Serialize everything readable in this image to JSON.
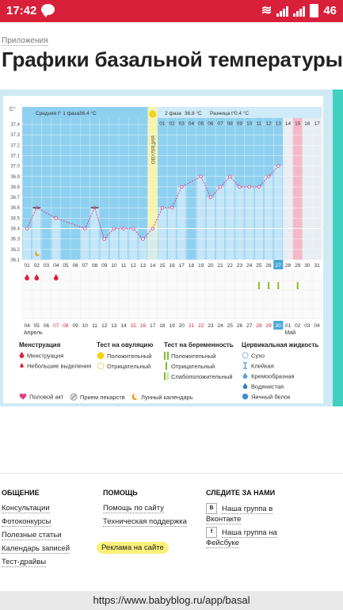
{
  "status": {
    "time": "17:42",
    "battery": "46"
  },
  "breadcrumb": "Приложения",
  "page_title": "Графики базальной температуры",
  "chart": {
    "unit": "C°",
    "phase1_label": "Средняя t° 1 фаза",
    "phase1_value": "36.4 °C",
    "phase2_label": "2 фаза",
    "phase2_value": "36.8 °C",
    "diff_label": "Разница t°",
    "diff_value": "0.4 °C",
    "ovulation_label": "ОВУЛЯЦИЯ",
    "month_april": "Апрель",
    "month_may": "Май"
  },
  "chart_data": {
    "type": "line",
    "y_ticks": [
      "37.4",
      "37.3",
      "37.2",
      "37.1",
      "37.0",
      "36.9",
      "36.8",
      "36.7",
      "36.6",
      "36.5",
      "36.4",
      "36.3",
      "36.2",
      "36.1"
    ],
    "ylim": [
      36.1,
      37.4
    ],
    "cycle_days": [
      "01",
      "02",
      "03",
      "04",
      "05",
      "06",
      "07",
      "08",
      "09",
      "10",
      "11",
      "12",
      "13",
      "14",
      "15",
      "16",
      "17",
      "18",
      "19",
      "20",
      "21",
      "22",
      "23",
      "24",
      "25",
      "26",
      "27",
      "28",
      "29",
      "30",
      "31"
    ],
    "top_days": [
      "01",
      "02",
      "03",
      "04",
      "05",
      "06",
      "07",
      "08",
      "09",
      "10",
      "11",
      "12",
      "13",
      "14",
      "15",
      "16",
      "17"
    ],
    "dates": [
      "04",
      "05",
      "06",
      "07",
      "08",
      "09",
      "10",
      "11",
      "12",
      "13",
      "14",
      "15",
      "16",
      "17",
      "18",
      "19",
      "20",
      "21",
      "22",
      "23",
      "24",
      "25",
      "26",
      "27",
      "28",
      "29",
      "30",
      "01",
      "02",
      "03",
      "04"
    ],
    "red_date_indices": [
      3,
      4,
      11,
      12,
      17,
      18,
      24,
      25
    ],
    "highlight_date_index": 26,
    "temperatures": [
      36.4,
      36.6,
      null,
      36.5,
      null,
      null,
      36.4,
      36.6,
      36.3,
      36.4,
      36.4,
      36.4,
      36.3,
      36.4,
      36.6,
      36.6,
      36.8,
      null,
      36.9,
      36.7,
      36.8,
      36.9,
      36.8,
      36.8,
      36.8,
      36.9,
      37.0
    ],
    "ovulation_day": 14,
    "phase1_average": 36.4,
    "menstruation_days": [
      1,
      2,
      4
    ],
    "positive_pregnancy_test_days": [
      25,
      26,
      27,
      29
    ],
    "highlight_day": 27,
    "pink_day": 29,
    "grey_days": [
      28,
      30,
      31
    ]
  },
  "legend": {
    "menstruation": {
      "title": "Менструация",
      "items": [
        "Менструация",
        "Небольшие выделения"
      ]
    },
    "ovulation_test": {
      "title": "Тест на овуляцию",
      "items": [
        "Положительный",
        "Отрицательный"
      ]
    },
    "pregnancy_test": {
      "title": "Тест на беременность",
      "items": [
        "Положительный",
        "Отрицательный",
        "Слабоположительный"
      ]
    },
    "cervical": {
      "title": "Цервикальная жидкость",
      "items": [
        "Сухо",
        "Клейкая",
        "Кремообразная",
        "Водянистая",
        "Яичный белок"
      ]
    },
    "bottom": [
      "Половой акт",
      "Прием лекарств",
      "Лунный календарь"
    ]
  },
  "footer": {
    "col1": {
      "title": "ОБЩЕНИЕ",
      "links": [
        "Консультации",
        "Фотоконкурсы",
        "Полезные статьи",
        "Календарь записей",
        "Тест-драйвы"
      ]
    },
    "col2": {
      "title": "ПОМОЩЬ",
      "links": [
        "Помощь по сайту",
        "Техническая поддержка",
        "Реклама на сайте"
      ]
    },
    "col3": {
      "title": "СЛЕДИТЕ ЗА НАМИ",
      "vk_badge": "В",
      "vk_line1": "Наша группа в",
      "vk_line2": "Вконтакте",
      "fb_badge": "f",
      "fb_line1": "Наша группа на",
      "fb_line2": "Фейсбуке"
    }
  },
  "url": "https://www.babyblog.ru/app/basal",
  "colors": {
    "statusbar": "#d8203a",
    "chart_blue": "#8fd0f0",
    "chart_light_blue": "#cfeaf8",
    "ovulation_yellow": "#f6f2b0",
    "line_pink": "#e0408a",
    "highlight": "#fbf07a",
    "mint": "#3fd0c0"
  }
}
